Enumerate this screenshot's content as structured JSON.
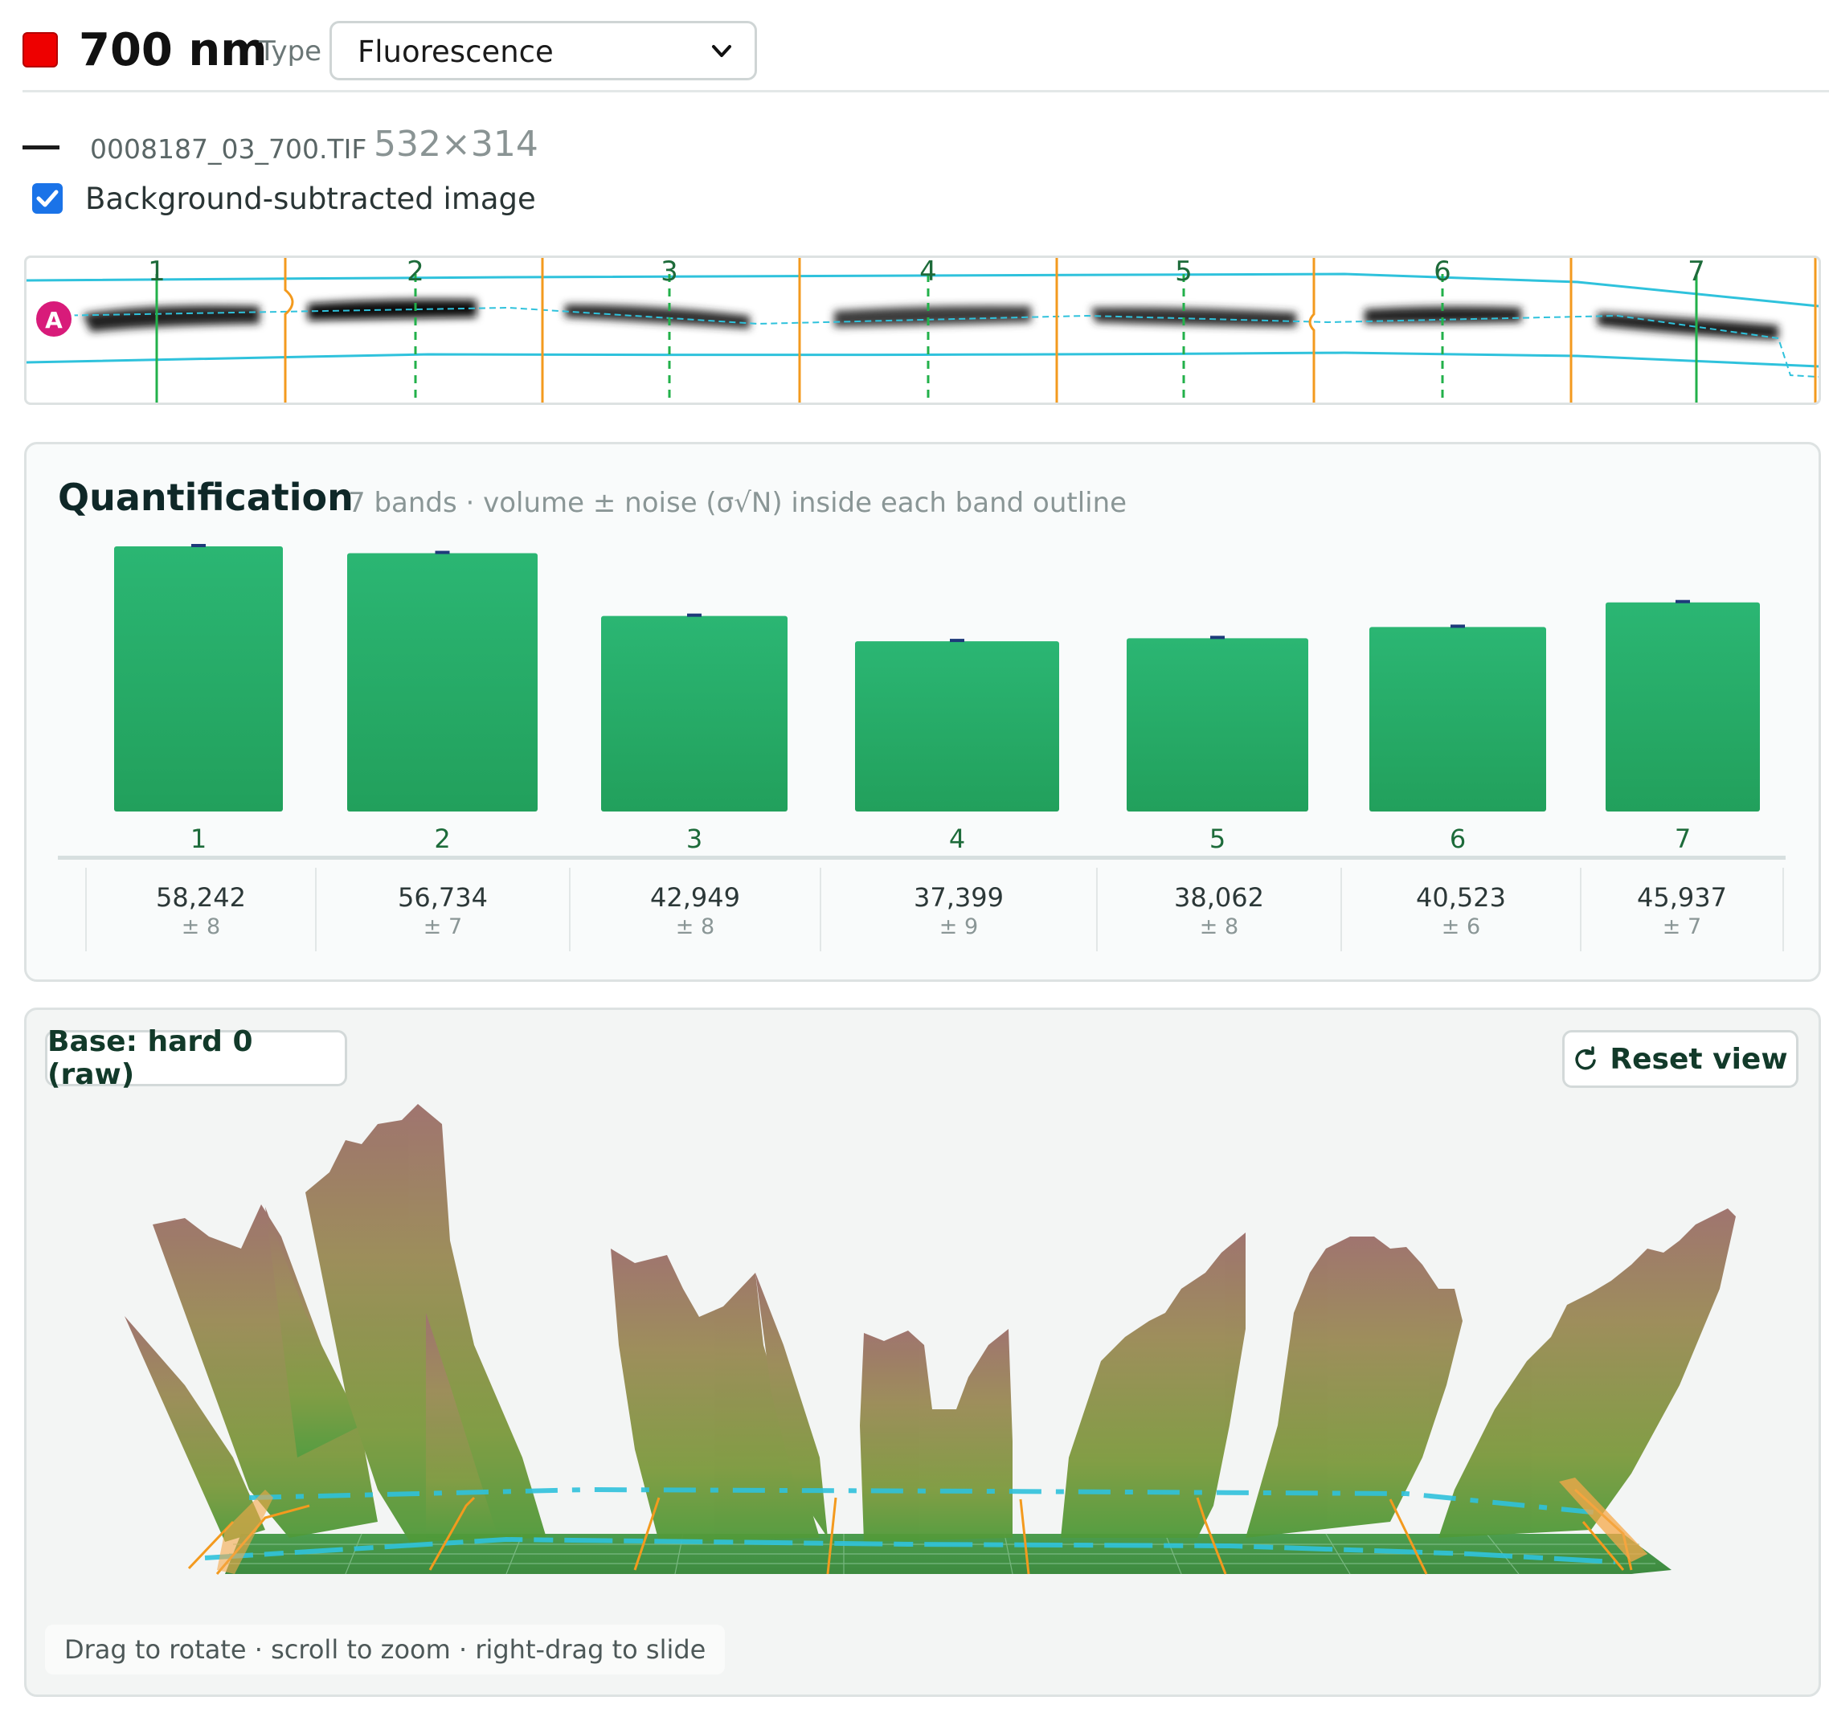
{
  "header": {
    "swatch_color": "#ee0000",
    "channel": "700 nm",
    "type_label": "Type",
    "type_value": "Fluorescence"
  },
  "file": {
    "name": "0008187_03_700.TIF",
    "dims": "532×314",
    "bg_subtracted_label": "Background-subtracted image",
    "bg_subtracted_checked": true
  },
  "lanes": {
    "marker": "A",
    "labels": [
      "1",
      "2",
      "3",
      "4",
      "5",
      "6",
      "7"
    ]
  },
  "quant": {
    "title": "Quantification",
    "subtitle": "7 bands · volume ± noise (σ√N) inside each band outline",
    "values": [
      {
        "lane": "1",
        "volume": "58,242",
        "noise": "± 8"
      },
      {
        "lane": "2",
        "volume": "56,734",
        "noise": "± 7"
      },
      {
        "lane": "3",
        "volume": "42,949",
        "noise": "± 8"
      },
      {
        "lane": "4",
        "volume": "37,399",
        "noise": "± 9"
      },
      {
        "lane": "5",
        "volume": "38,062",
        "noise": "± 8"
      },
      {
        "lane": "6",
        "volume": "40,523",
        "noise": "± 6"
      },
      {
        "lane": "7",
        "volume": "45,937",
        "noise": "± 7"
      }
    ]
  },
  "chart_data": {
    "type": "bar",
    "categories": [
      "1",
      "2",
      "3",
      "4",
      "5",
      "6",
      "7"
    ],
    "values": [
      58242,
      56734,
      42949,
      37399,
      38062,
      40523,
      45937
    ],
    "errors": [
      8,
      7,
      8,
      9,
      8,
      6,
      7
    ],
    "colors": {
      "bar": "#27ad68",
      "error": "#1e3a7a"
    }
  },
  "view3d": {
    "base_label": "Base: hard 0 (raw)",
    "reset_label": "Reset view",
    "hint": "Drag to rotate · scroll to zoom · right-drag to slide"
  },
  "colors": {
    "accent": "#1a73e8",
    "lane_line": "#2fc2dc",
    "boundary": "#f39a1e",
    "band_center": "#22b04a",
    "marker": "#d81b7a"
  }
}
